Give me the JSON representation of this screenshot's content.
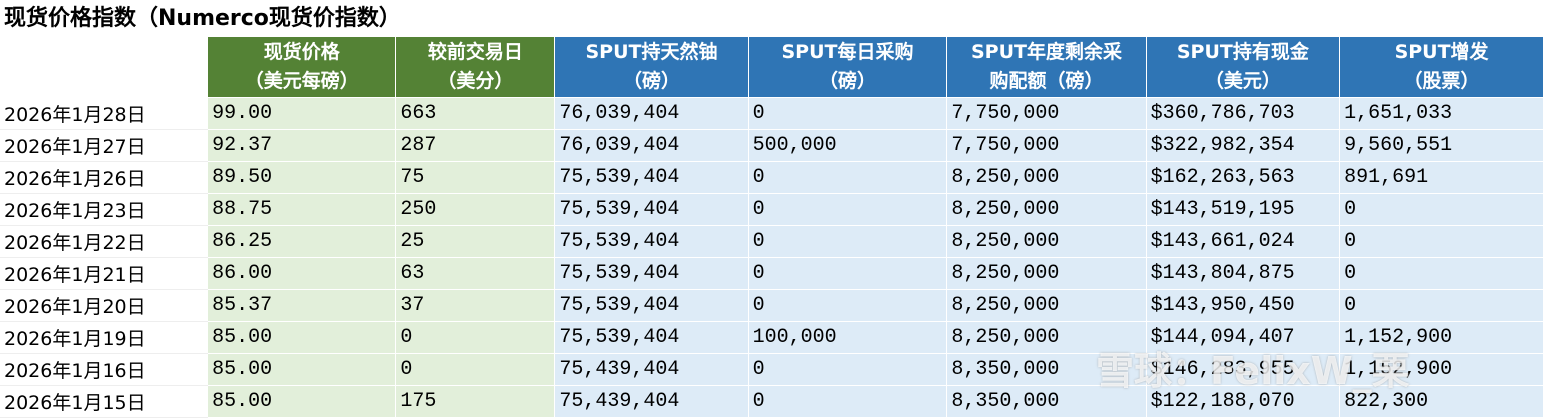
{
  "title": "现货价格指数（Numerco现货价指数）",
  "table": {
    "header": [
      [],
      [
        "现货价格",
        "（美元每磅）"
      ],
      [
        "较前交易日",
        "（美分）"
      ],
      [
        "SPUT持天然铀",
        "（磅）"
      ],
      [
        "SPUT每日采购",
        "（磅）"
      ],
      [
        "SPUT年度剩余采",
        "购配额（磅）"
      ],
      [
        "SPUT持有现金",
        "（美元）"
      ],
      [
        "SPUT增发",
        "（股票）"
      ]
    ],
    "rows": [
      [
        "2026年1月28日",
        "99.00",
        "663",
        "76,039,404",
        "0",
        "7,750,000",
        "$360,786,703",
        "1,651,033"
      ],
      [
        "2026年1月27日",
        "92.37",
        "287",
        "76,039,404",
        "500,000",
        "7,750,000",
        "$322,982,354",
        "9,560,551"
      ],
      [
        "2026年1月26日",
        "89.50",
        "75",
        "75,539,404",
        "0",
        "8,250,000",
        "$162,263,563",
        "891,691"
      ],
      [
        "2026年1月23日",
        "88.75",
        "250",
        "75,539,404",
        "0",
        "8,250,000",
        "$143,519,195",
        "0"
      ],
      [
        "2026年1月22日",
        "86.25",
        "25",
        "75,539,404",
        "0",
        "8,250,000",
        "$143,661,024",
        "0"
      ],
      [
        "2026年1月21日",
        "86.00",
        "63",
        "75,539,404",
        "0",
        "8,250,000",
        "$143,804,875",
        "0"
      ],
      [
        "2026年1月20日",
        "85.37",
        "37",
        "75,539,404",
        "0",
        "8,250,000",
        "$143,950,450",
        "0"
      ],
      [
        "2026年1月19日",
        "85.00",
        "0",
        "75,539,404",
        "100,000",
        "8,250,000",
        "$144,094,407",
        "1,152,900"
      ],
      [
        "2026年1月16日",
        "85.00",
        "0",
        "75,439,404",
        "0",
        "8,350,000",
        "$146,283,955",
        "1,152,900"
      ],
      [
        "2026年1月15日",
        "85.00",
        "175",
        "75,439,404",
        "0",
        "8,350,000",
        "$122,188,070",
        "822,300"
      ]
    ]
  },
  "watermark": "雪球：FelixW_栗"
}
